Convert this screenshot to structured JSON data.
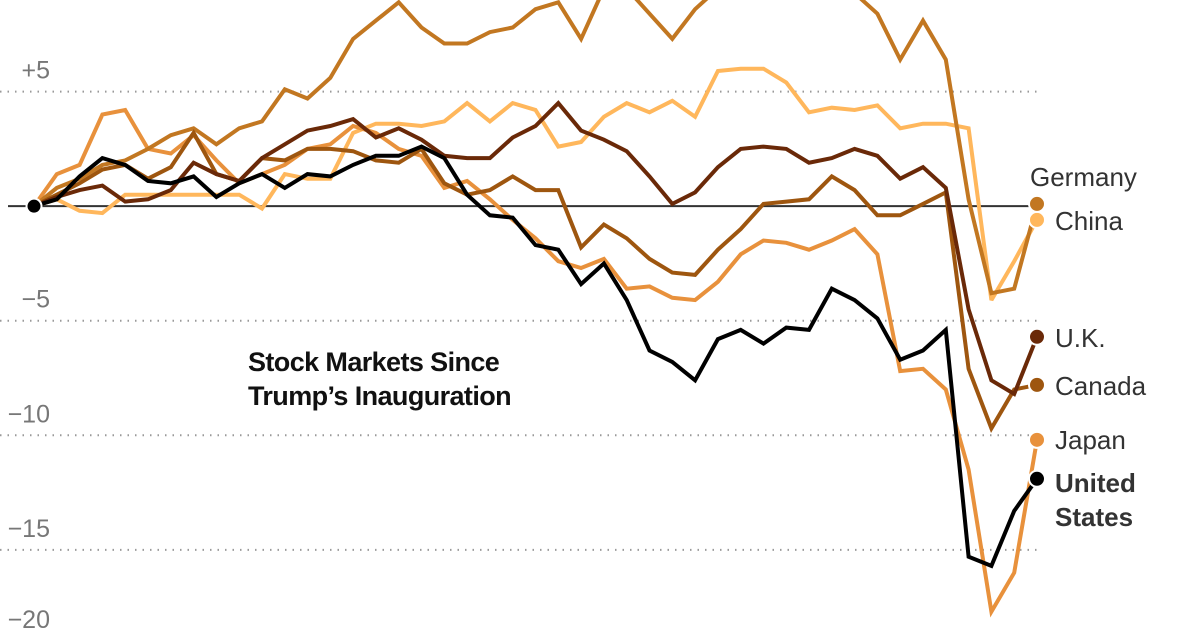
{
  "chart_data": {
    "type": "line",
    "title": [
      "Stock Markets Since",
      "Trump’s Inauguration"
    ],
    "xlabel": "",
    "ylabel": "",
    "ylim": [
      -18.5,
      9
    ],
    "yticks": [
      {
        "value": 5,
        "label": "+5"
      },
      {
        "value": -5,
        "label": "−5"
      },
      {
        "value": -10,
        "label": "−10"
      },
      {
        "value": -15,
        "label": "−15"
      },
      {
        "value": -20,
        "label": "−20"
      }
    ],
    "grid": true,
    "legend": "direct labels at line ends, right",
    "series": [
      {
        "name": "China",
        "color": "#ffb75c",
        "label": [
          "China"
        ],
        "values": [
          0,
          0.3,
          -0.2,
          -0.3,
          0.5,
          0.5,
          0.5,
          0.5,
          0.5,
          0.5,
          -0.1,
          1.4,
          1.2,
          1.2,
          3.2,
          3.6,
          3.6,
          3.5,
          3.7,
          4.5,
          3.7,
          4.5,
          4.2,
          2.6,
          2.8,
          3.9,
          4.5,
          4.1,
          4.6,
          3.9,
          5.9,
          6.0,
          6.0,
          5.4,
          4.1,
          4.3,
          4.2,
          4.4,
          3.4,
          3.6,
          3.6,
          3.4,
          -4.1,
          -2.4,
          -0.6
        ]
      },
      {
        "name": "Japan",
        "color": "#e8913c",
        "label": [
          "Japan"
        ],
        "values": [
          0,
          1.4,
          1.8,
          4.0,
          4.2,
          2.5,
          2.3,
          3.1,
          2.0,
          1.0,
          1.4,
          1.8,
          2.5,
          2.7,
          3.5,
          3.2,
          2.5,
          2.2,
          0.8,
          1.1,
          0.3,
          -0.6,
          -1.4,
          -2.4,
          -2.7,
          -2.3,
          -3.6,
          -3.5,
          -4.0,
          -4.1,
          -3.3,
          -2.1,
          -1.5,
          -1.6,
          -1.9,
          -1.5,
          -1.0,
          -2.1,
          -7.2,
          -7.1,
          -8.0,
          -11.5,
          -17.7,
          -16.0,
          -10.2
        ]
      },
      {
        "name": "Germany",
        "color": "#c27721",
        "label": [
          "Germany"
        ],
        "values": [
          0,
          0.8,
          1.2,
          1.8,
          2.0,
          2.5,
          3.1,
          3.4,
          2.7,
          3.4,
          3.7,
          5.1,
          4.7,
          5.6,
          7.3,
          8.1,
          8.9,
          7.8,
          7.1,
          7.1,
          7.6,
          7.8,
          8.6,
          8.9,
          7.3,
          9.5,
          9.5,
          8.4,
          7.3,
          8.6,
          9.5,
          9.7,
          9.7,
          9.7,
          9.7,
          9.5,
          9.3,
          8.4,
          6.4,
          8.1,
          6.4,
          0.3,
          -3.8,
          -3.6,
          0.1
        ]
      },
      {
        "name": "Canada",
        "color": "#9e560f",
        "label": [
          "Canada"
        ],
        "values": [
          0,
          0.5,
          1.0,
          1.6,
          1.8,
          1.2,
          1.7,
          3.2,
          1.4,
          1.1,
          2.1,
          2.0,
          2.5,
          2.5,
          2.4,
          2.0,
          1.9,
          2.5,
          1.0,
          0.5,
          0.7,
          1.3,
          0.7,
          0.7,
          -1.8,
          -0.8,
          -1.4,
          -2.3,
          -2.9,
          -3.0,
          -1.9,
          -1.0,
          0.1,
          0.2,
          0.3,
          1.3,
          0.7,
          -0.4,
          -0.4,
          0.1,
          0.6,
          -7.1,
          -9.7,
          -8.0,
          -7.8
        ]
      },
      {
        "name": "U.K.",
        "color": "#6a2908",
        "label": [
          "U.K."
        ],
        "values": [
          0,
          0.4,
          0.7,
          0.9,
          0.2,
          0.3,
          0.7,
          1.9,
          1.4,
          1.1,
          2.1,
          2.7,
          3.3,
          3.5,
          3.8,
          3.0,
          3.4,
          2.9,
          2.2,
          2.1,
          2.1,
          3.0,
          3.5,
          4.5,
          3.3,
          2.9,
          2.4,
          1.3,
          0.1,
          0.6,
          1.7,
          2.5,
          2.6,
          2.5,
          1.9,
          2.1,
          2.5,
          2.2,
          1.2,
          1.7,
          0.8,
          -4.5,
          -7.6,
          -8.2,
          -5.7
        ]
      },
      {
        "name": "United States",
        "color": "#000000",
        "label": [
          "United",
          "States"
        ],
        "values": [
          0,
          0.3,
          1.3,
          2.1,
          1.8,
          1.1,
          1.0,
          1.3,
          0.4,
          1.0,
          1.4,
          0.8,
          1.4,
          1.3,
          1.8,
          2.2,
          2.2,
          2.6,
          2.1,
          0.5,
          -0.4,
          -0.5,
          -1.7,
          -1.9,
          -3.4,
          -2.5,
          -4.1,
          -6.3,
          -6.8,
          -7.6,
          -5.8,
          -5.4,
          -6.0,
          -5.3,
          -5.4,
          -3.6,
          -4.1,
          -4.9,
          -6.7,
          -6.3,
          -5.4,
          -15.3,
          -15.7,
          -13.3,
          -11.9
        ]
      }
    ]
  }
}
